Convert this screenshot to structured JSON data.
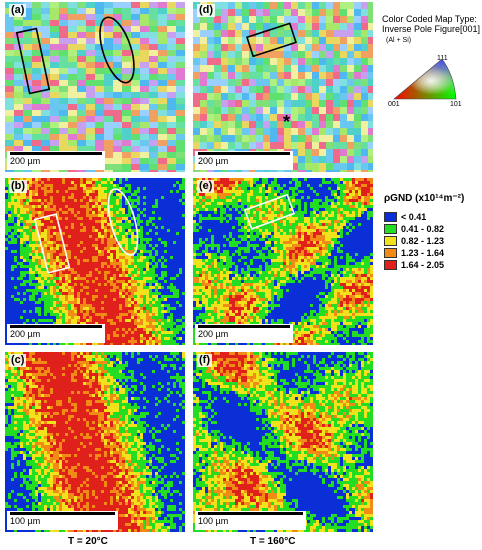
{
  "panels": {
    "a": {
      "label": "(a)",
      "scale": "200 µm"
    },
    "b": {
      "label": "(b)",
      "scale": "200 µm"
    },
    "c": {
      "label": "(c)",
      "scale": "100 µm"
    },
    "d": {
      "label": "(d)",
      "scale": "200 µm"
    },
    "e": {
      "label": "(e)",
      "scale": "200 µm"
    },
    "f": {
      "label": "(f)",
      "scale": "100 µm"
    }
  },
  "temperatures": {
    "left": "T = 20°C",
    "right": "T = 160°C"
  },
  "ipf_legend": {
    "title1": "Color Coded Map Type:",
    "title2": "Inverse Pole Figure[001]",
    "phase": "(Al + Si)",
    "corner_top": "111",
    "corner_left": "001",
    "corner_right": "101"
  },
  "gnd_legend": {
    "title": "ρGND (x10¹⁴m⁻²)",
    "items": [
      {
        "range": "< 0.41",
        "color": "#0a2fd6"
      },
      {
        "range": "0.41 - 0.82",
        "color": "#22dd22"
      },
      {
        "range": "0.82 - 1.23",
        "color": "#f2e21c"
      },
      {
        "range": "1.23 - 1.64",
        "color": "#f28a16"
      },
      {
        "range": "1.64 - 2.05",
        "color": "#e0201a"
      }
    ]
  },
  "star_marker": "*"
}
